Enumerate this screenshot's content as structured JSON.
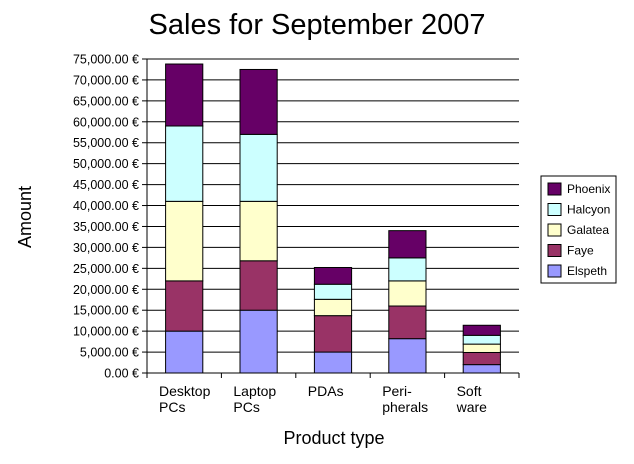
{
  "chart_data": {
    "type": "bar",
    "stacked": true,
    "title": "Sales for September 2007",
    "xlabel": "Product type",
    "ylabel": "Amount",
    "ylim": [
      0,
      75000
    ],
    "ytick_step": 5000,
    "ytick_labels": [
      "0.00 €",
      "5,000.00 €",
      "10,000.00 €",
      "15,000.00 €",
      "20,000.00 €",
      "25,000.00 €",
      "30,000.00 €",
      "35,000.00 €",
      "40,000.00 €",
      "45,000.00 €",
      "50,000.00 €",
      "55,000.00 €",
      "60,000.00 €",
      "65,000.00 €",
      "70,000.00 €",
      "75,000.00 €"
    ],
    "grid": true,
    "legend_position": "right",
    "categories": [
      [
        "Desktop",
        "PCs"
      ],
      [
        "Laptop",
        "PCs"
      ],
      [
        "PDAs"
      ],
      [
        "Peri-",
        "pherals"
      ],
      [
        "Soft",
        "ware"
      ]
    ],
    "series": [
      {
        "name": "Elspeth",
        "color": "#9999ff",
        "values": [
          10000,
          15000,
          5000,
          8200,
          2000
        ]
      },
      {
        "name": "Faye",
        "color": "#993366",
        "values": [
          12000,
          11800,
          8700,
          7800,
          2900
        ]
      },
      {
        "name": "Galatea",
        "color": "#ffffcc",
        "values": [
          19000,
          14200,
          3900,
          6000,
          2000
        ]
      },
      {
        "name": "Halcyon",
        "color": "#ccffff",
        "values": [
          18000,
          16000,
          3600,
          5500,
          2100
        ]
      },
      {
        "name": "Phoenix",
        "color": "#660066",
        "values": [
          14800,
          15500,
          4000,
          6500,
          2400
        ]
      }
    ]
  }
}
